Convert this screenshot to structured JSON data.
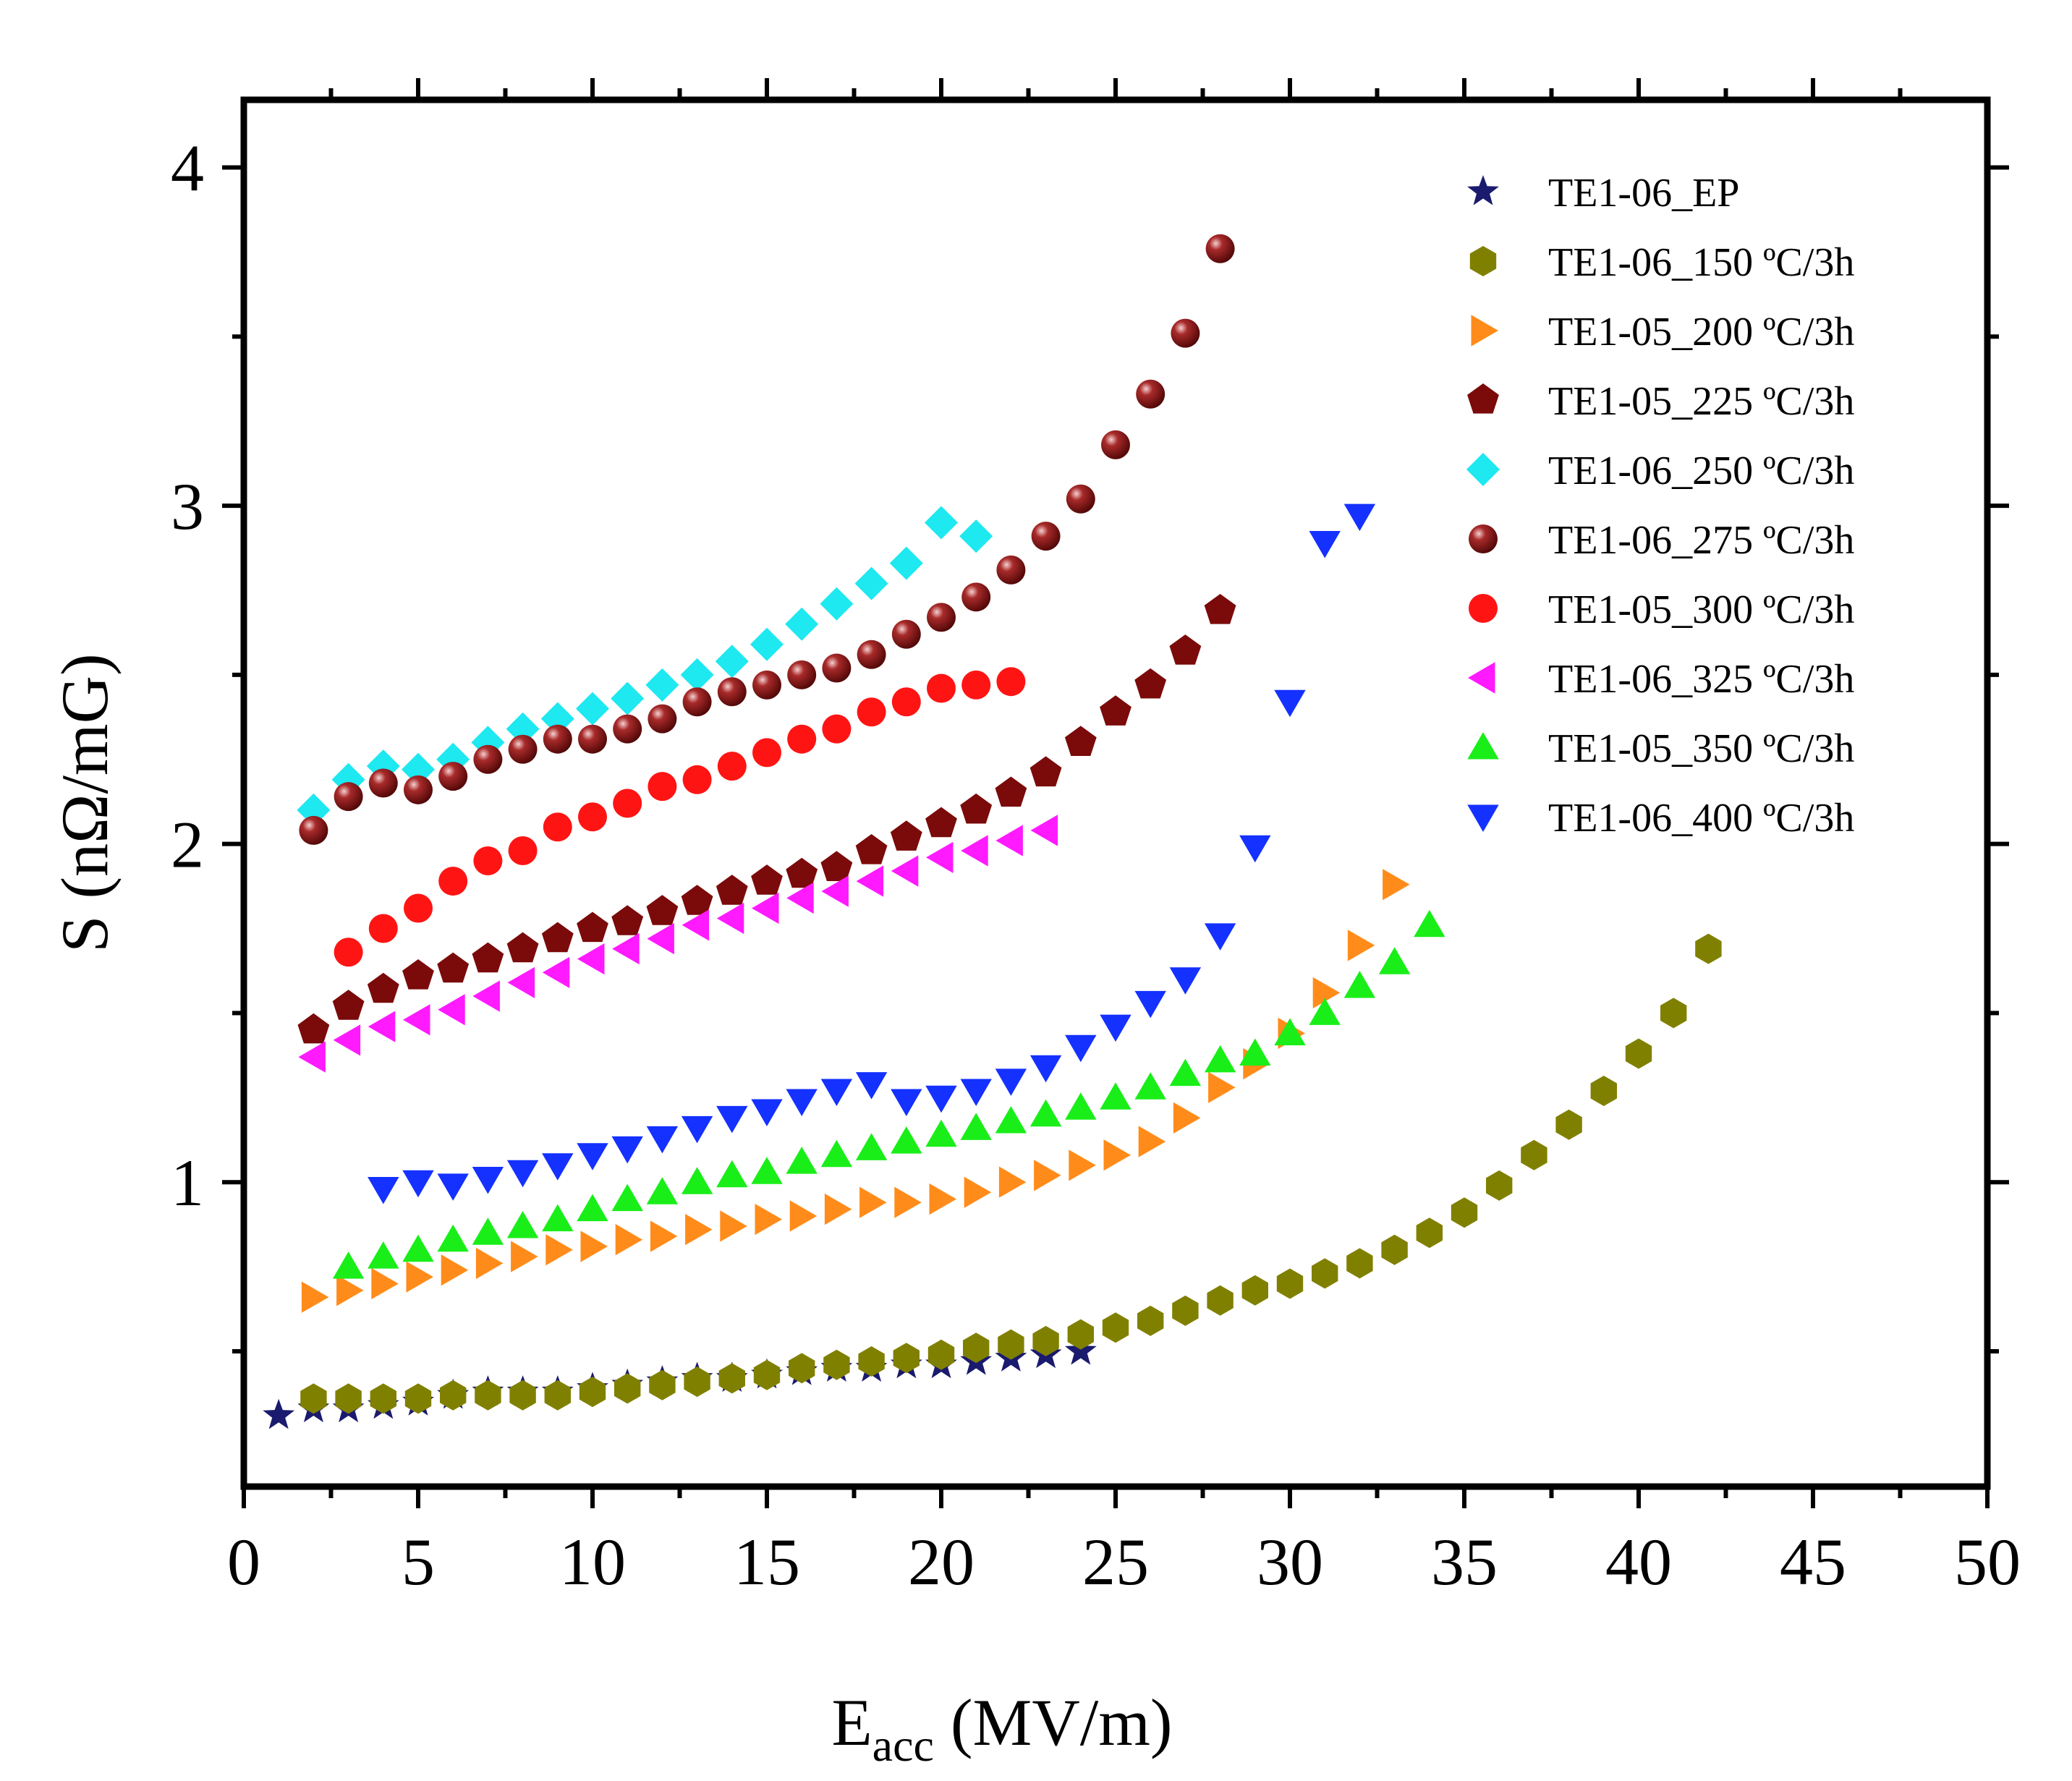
{
  "chart_data": {
    "type": "scatter",
    "title": "",
    "xlabel": {
      "main": "E",
      "sub": "acc",
      "unit": " (MV/m)"
    },
    "ylabel": "S (nΩ/mG)",
    "xlim": [
      0,
      50
    ],
    "ylim": [
      0.1,
      4.2
    ],
    "xticks": [
      0,
      5,
      10,
      15,
      20,
      25,
      30,
      35,
      40,
      45,
      50
    ],
    "xtick_labels": [
      "0",
      "5",
      "10",
      "15",
      "20",
      "25",
      "30",
      "35",
      "40",
      "45",
      "50"
    ],
    "yticks": [
      1,
      2,
      3,
      4
    ],
    "ytick_labels": [
      "1",
      "2",
      "3",
      "4"
    ],
    "legend_position": "top-right",
    "series": [
      {
        "name": "TE1-06_EP",
        "marker": "star",
        "color": "#1a1a6e",
        "x": [
          1,
          2,
          3,
          4,
          5,
          6,
          7,
          8,
          9,
          10,
          11,
          12,
          13,
          14,
          15,
          16,
          17,
          18,
          19,
          20,
          21,
          22,
          23,
          24
        ],
        "y": [
          0.31,
          0.33,
          0.33,
          0.34,
          0.35,
          0.37,
          0.38,
          0.38,
          0.38,
          0.39,
          0.4,
          0.41,
          0.42,
          0.42,
          0.43,
          0.44,
          0.45,
          0.45,
          0.46,
          0.46,
          0.47,
          0.48,
          0.49,
          0.5
        ]
      },
      {
        "name": "TE1-06_150 ºC/3h",
        "marker": "hexagon",
        "color": "#808000",
        "x": [
          2,
          3,
          4,
          5,
          6,
          7,
          8,
          9,
          10,
          11,
          12,
          13,
          14,
          15,
          16,
          17,
          18,
          19,
          20,
          21,
          22,
          23,
          24,
          25,
          26,
          27,
          28,
          29,
          30,
          31,
          32,
          33,
          34,
          35,
          36,
          37,
          38,
          39,
          40,
          41,
          42
        ],
        "y": [
          0.36,
          0.36,
          0.36,
          0.36,
          0.37,
          0.37,
          0.37,
          0.37,
          0.38,
          0.39,
          0.4,
          0.41,
          0.42,
          0.43,
          0.45,
          0.46,
          0.47,
          0.48,
          0.49,
          0.51,
          0.52,
          0.53,
          0.55,
          0.57,
          0.59,
          0.62,
          0.65,
          0.68,
          0.7,
          0.73,
          0.76,
          0.8,
          0.85,
          0.91,
          0.99,
          1.08,
          1.17,
          1.27,
          1.38,
          1.5,
          1.69
        ]
      },
      {
        "name": "TE1-05_200 ºC/3h",
        "marker": "triangle-right",
        "color": "#ff8c1a",
        "x": [
          2,
          3,
          4,
          5,
          6,
          7,
          8,
          9,
          10,
          11,
          12,
          13,
          14,
          15,
          16,
          17,
          18,
          19,
          20,
          21,
          22,
          23,
          24,
          25,
          26,
          27,
          28,
          29,
          30,
          31,
          32,
          33
        ],
        "y": [
          0.66,
          0.68,
          0.7,
          0.72,
          0.74,
          0.76,
          0.78,
          0.8,
          0.81,
          0.83,
          0.84,
          0.86,
          0.87,
          0.89,
          0.9,
          0.92,
          0.94,
          0.94,
          0.95,
          0.97,
          1.0,
          1.02,
          1.05,
          1.08,
          1.12,
          1.19,
          1.28,
          1.35,
          1.44,
          1.56,
          1.7,
          1.88
        ]
      },
      {
        "name": "TE1-05_225 ºC/3h",
        "marker": "pentagon",
        "color": "#7b0a0a",
        "x": [
          2,
          3,
          4,
          5,
          6,
          7,
          8,
          9,
          10,
          11,
          12,
          13,
          14,
          15,
          16,
          17,
          18,
          19,
          20,
          21,
          22,
          23,
          24,
          25,
          26,
          27,
          28
        ],
        "y": [
          1.45,
          1.52,
          1.57,
          1.61,
          1.63,
          1.66,
          1.69,
          1.72,
          1.75,
          1.77,
          1.8,
          1.83,
          1.86,
          1.89,
          1.91,
          1.93,
          1.98,
          2.02,
          2.06,
          2.1,
          2.15,
          2.21,
          2.3,
          2.39,
          2.47,
          2.57,
          2.69
        ]
      },
      {
        "name": "TE1-06_250 ºC/3h",
        "marker": "diamond",
        "color": "#1ee8f0",
        "x": [
          2,
          3,
          4,
          5,
          6,
          7,
          8,
          9,
          10,
          11,
          12,
          13,
          14,
          15,
          16,
          17,
          18,
          19,
          20,
          21
        ],
        "y": [
          2.1,
          2.19,
          2.23,
          2.22,
          2.25,
          2.3,
          2.34,
          2.37,
          2.4,
          2.43,
          2.47,
          2.5,
          2.54,
          2.59,
          2.65,
          2.71,
          2.77,
          2.83,
          2.95,
          2.91
        ]
      },
      {
        "name": "TE1-06_275 ºC/3h",
        "marker": "sphere",
        "color": "#8b1a1a",
        "x": [
          2,
          3,
          4,
          5,
          6,
          7,
          8,
          9,
          10,
          11,
          12,
          13,
          14,
          15,
          16,
          17,
          18,
          19,
          20,
          21,
          22,
          23,
          24,
          25,
          26,
          27,
          28
        ],
        "y": [
          2.04,
          2.14,
          2.18,
          2.16,
          2.2,
          2.25,
          2.28,
          2.31,
          2.31,
          2.34,
          2.37,
          2.42,
          2.45,
          2.47,
          2.5,
          2.52,
          2.56,
          2.62,
          2.67,
          2.73,
          2.81,
          2.91,
          3.02,
          3.18,
          3.33,
          3.51,
          3.76
        ]
      },
      {
        "name": "TE1-05_300 ºC/3h",
        "marker": "circle",
        "color": "#ff1414",
        "x": [
          3,
          4,
          5,
          6,
          7,
          8,
          9,
          10,
          11,
          12,
          13,
          14,
          15,
          16,
          17,
          18,
          19,
          20,
          21,
          22
        ],
        "y": [
          1.68,
          1.75,
          1.81,
          1.89,
          1.95,
          1.98,
          2.05,
          2.08,
          2.12,
          2.17,
          2.19,
          2.23,
          2.27,
          2.31,
          2.34,
          2.39,
          2.42,
          2.46,
          2.47,
          2.48
        ]
      },
      {
        "name": "TE1-06_325 ºC/3h",
        "marker": "triangle-left",
        "color": "#ff1aff",
        "x": [
          2,
          3,
          4,
          5,
          6,
          7,
          8,
          9,
          10,
          11,
          12,
          13,
          14,
          15,
          16,
          17,
          18,
          19,
          20,
          21,
          22,
          23
        ],
        "y": [
          1.37,
          1.42,
          1.46,
          1.48,
          1.51,
          1.55,
          1.59,
          1.62,
          1.66,
          1.69,
          1.72,
          1.76,
          1.78,
          1.81,
          1.84,
          1.86,
          1.89,
          1.92,
          1.96,
          1.98,
          2.01,
          2.04
        ]
      },
      {
        "name": "TE1-05_350 ºC/3h",
        "marker": "triangle-up",
        "color": "#19ee19",
        "x": [
          3,
          4,
          5,
          6,
          7,
          8,
          9,
          10,
          11,
          12,
          13,
          14,
          15,
          16,
          17,
          18,
          19,
          20,
          21,
          22,
          23,
          24,
          25,
          26,
          27,
          28,
          29,
          30,
          31,
          32,
          33,
          34
        ],
        "y": [
          0.75,
          0.78,
          0.8,
          0.83,
          0.85,
          0.87,
          0.89,
          0.92,
          0.95,
          0.97,
          1.0,
          1.02,
          1.03,
          1.06,
          1.08,
          1.1,
          1.12,
          1.14,
          1.16,
          1.18,
          1.2,
          1.22,
          1.25,
          1.28,
          1.32,
          1.36,
          1.38,
          1.44,
          1.5,
          1.58,
          1.65,
          1.76
        ]
      },
      {
        "name": "TE1-06_400 ºC/3h",
        "marker": "triangle-down",
        "color": "#1431ff",
        "x": [
          4,
          5,
          6,
          7,
          8,
          9,
          10,
          11,
          12,
          13,
          14,
          15,
          16,
          17,
          18,
          19,
          20,
          21,
          22,
          23,
          24,
          25,
          26,
          27,
          28,
          29,
          30,
          31,
          32
        ],
        "y": [
          0.98,
          1.0,
          0.99,
          1.01,
          1.03,
          1.05,
          1.08,
          1.1,
          1.13,
          1.16,
          1.19,
          1.21,
          1.24,
          1.27,
          1.29,
          1.24,
          1.25,
          1.27,
          1.3,
          1.34,
          1.4,
          1.46,
          1.53,
          1.6,
          1.73,
          1.99,
          2.42,
          2.89,
          2.97
        ]
      }
    ]
  }
}
